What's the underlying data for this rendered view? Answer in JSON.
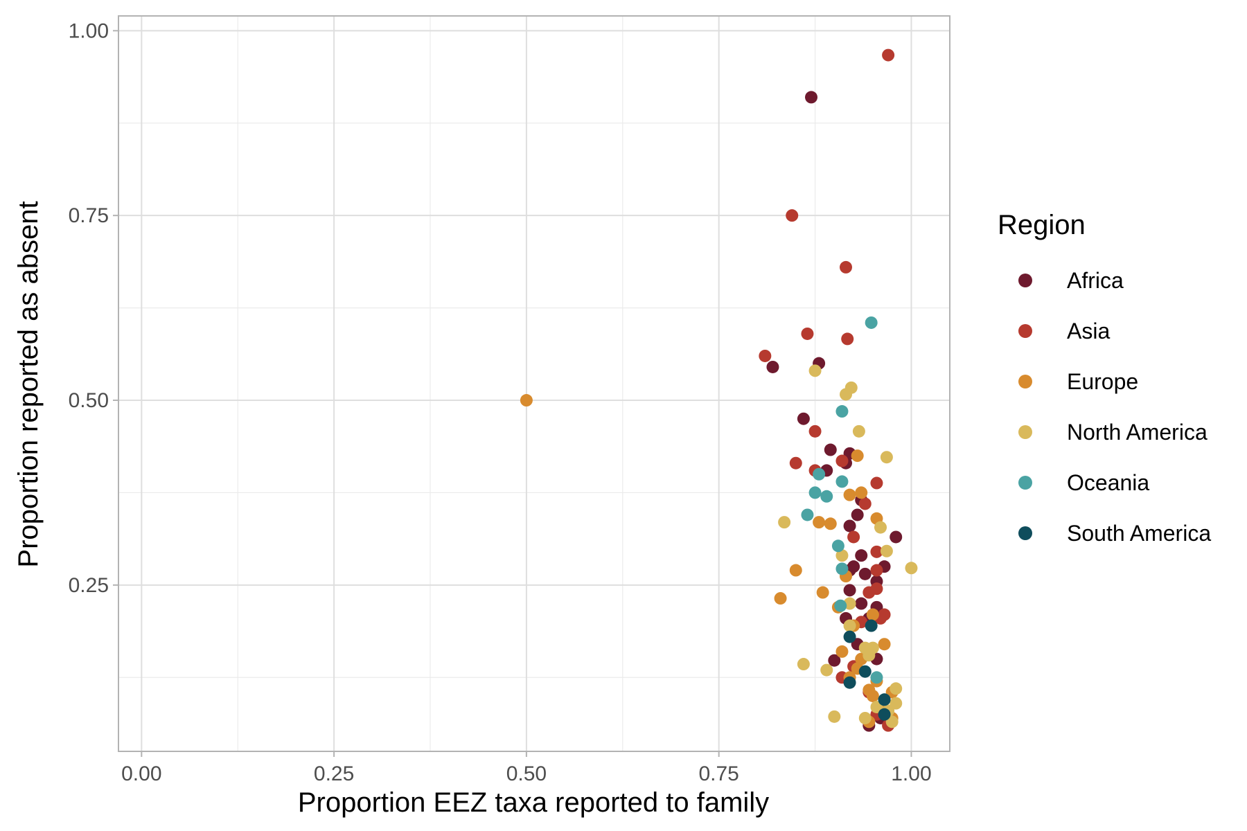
{
  "chart_data": {
    "type": "scatter",
    "title": "",
    "xlabel": "Proportion EEZ taxa reported to family",
    "ylabel": "Proportion reported as absent",
    "xlim": [
      -0.03,
      1.05
    ],
    "ylim": [
      0.025,
      1.02
    ],
    "x_ticks": [
      0,
      0.25,
      0.5,
      0.75,
      1.0
    ],
    "x_tick_labels": [
      "0.00",
      "0.25",
      "0.50",
      "0.75",
      "1.00"
    ],
    "y_ticks": [
      0.25,
      0.5,
      0.75,
      1.0
    ],
    "y_tick_labels": [
      "0.25",
      "0.50",
      "0.75",
      "1.00"
    ],
    "grid": true,
    "legend": {
      "title": "Region",
      "position": "right"
    },
    "series": [
      {
        "name": "Africa",
        "color": "#6e1a2e",
        "points": [
          [
            0.87,
            0.91
          ],
          [
            0.82,
            0.545
          ],
          [
            0.88,
            0.55
          ],
          [
            0.86,
            0.475
          ],
          [
            0.895,
            0.433
          ],
          [
            0.89,
            0.405
          ],
          [
            0.915,
            0.415
          ],
          [
            0.92,
            0.428
          ],
          [
            0.935,
            0.365
          ],
          [
            0.93,
            0.345
          ],
          [
            0.92,
            0.33
          ],
          [
            0.935,
            0.29
          ],
          [
            0.925,
            0.275
          ],
          [
            0.92,
            0.27
          ],
          [
            0.94,
            0.265
          ],
          [
            0.955,
            0.255
          ],
          [
            0.965,
            0.275
          ],
          [
            0.98,
            0.315
          ],
          [
            0.92,
            0.243
          ],
          [
            0.935,
            0.225
          ],
          [
            0.915,
            0.205
          ],
          [
            0.945,
            0.205
          ],
          [
            0.955,
            0.22
          ],
          [
            0.93,
            0.17
          ],
          [
            0.9,
            0.148
          ],
          [
            0.955,
            0.15
          ],
          [
            0.945,
            0.06
          ],
          [
            0.96,
            0.07
          ]
        ]
      },
      {
        "name": "Asia",
        "color": "#b63a2f",
        "points": [
          [
            0.97,
            0.967
          ],
          [
            0.845,
            0.75
          ],
          [
            0.915,
            0.68
          ],
          [
            0.865,
            0.59
          ],
          [
            0.917,
            0.583
          ],
          [
            0.81,
            0.56
          ],
          [
            0.875,
            0.458
          ],
          [
            0.85,
            0.415
          ],
          [
            0.875,
            0.405
          ],
          [
            0.91,
            0.418
          ],
          [
            0.955,
            0.388
          ],
          [
            0.94,
            0.36
          ],
          [
            0.925,
            0.315
          ],
          [
            0.955,
            0.295
          ],
          [
            0.955,
            0.27
          ],
          [
            0.945,
            0.24
          ],
          [
            0.955,
            0.245
          ],
          [
            0.965,
            0.21
          ],
          [
            0.96,
            0.205
          ],
          [
            0.935,
            0.2
          ],
          [
            0.91,
            0.125
          ],
          [
            0.925,
            0.14
          ],
          [
            0.945,
            0.105
          ],
          [
            0.955,
            0.075
          ],
          [
            0.97,
            0.06
          ]
        ]
      },
      {
        "name": "Europe",
        "color": "#d88b2e",
        "points": [
          [
            0.5,
            0.5
          ],
          [
            0.93,
            0.425
          ],
          [
            0.935,
            0.375
          ],
          [
            0.92,
            0.372
          ],
          [
            0.88,
            0.335
          ],
          [
            0.895,
            0.333
          ],
          [
            0.955,
            0.34
          ],
          [
            0.85,
            0.27
          ],
          [
            0.83,
            0.232
          ],
          [
            0.885,
            0.24
          ],
          [
            0.915,
            0.262
          ],
          [
            0.905,
            0.22
          ],
          [
            0.925,
            0.195
          ],
          [
            0.95,
            0.21
          ],
          [
            0.965,
            0.17
          ],
          [
            0.91,
            0.16
          ],
          [
            0.935,
            0.15
          ],
          [
            0.93,
            0.137
          ],
          [
            0.955,
            0.12
          ],
          [
            0.945,
            0.108
          ],
          [
            0.975,
            0.105
          ],
          [
            0.95,
            0.1
          ],
          [
            0.96,
            0.085
          ],
          [
            0.945,
            0.065
          ],
          [
            0.975,
            0.07
          ],
          [
            0.92,
            0.125
          ]
        ]
      },
      {
        "name": "North America",
        "color": "#d9b95b",
        "points": [
          [
            0.875,
            0.54
          ],
          [
            0.915,
            0.508
          ],
          [
            0.922,
            0.517
          ],
          [
            0.932,
            0.458
          ],
          [
            0.968,
            0.423
          ],
          [
            0.835,
            0.335
          ],
          [
            0.96,
            0.328
          ],
          [
            0.968,
            0.296
          ],
          [
            0.91,
            0.29
          ],
          [
            1.0,
            0.273
          ],
          [
            0.92,
            0.225
          ],
          [
            0.92,
            0.195
          ],
          [
            0.86,
            0.143
          ],
          [
            0.89,
            0.135
          ],
          [
            0.94,
            0.165
          ],
          [
            0.95,
            0.165
          ],
          [
            0.945,
            0.155
          ],
          [
            0.98,
            0.11
          ],
          [
            0.98,
            0.09
          ],
          [
            0.97,
            0.08
          ],
          [
            0.9,
            0.072
          ],
          [
            0.955,
            0.085
          ],
          [
            0.975,
            0.065
          ],
          [
            0.94,
            0.07
          ]
        ]
      },
      {
        "name": "Oceania",
        "color": "#4aa3a3",
        "points": [
          [
            0.948,
            0.605
          ],
          [
            0.91,
            0.485
          ],
          [
            0.88,
            0.4
          ],
          [
            0.91,
            0.39
          ],
          [
            0.875,
            0.375
          ],
          [
            0.89,
            0.37
          ],
          [
            0.865,
            0.345
          ],
          [
            0.905,
            0.303
          ],
          [
            0.91,
            0.272
          ],
          [
            0.908,
            0.222
          ],
          [
            0.955,
            0.125
          ],
          [
            0.965,
            0.095
          ]
        ]
      },
      {
        "name": "South America",
        "color": "#0f4d5c",
        "points": [
          [
            0.948,
            0.195
          ],
          [
            0.92,
            0.18
          ],
          [
            0.94,
            0.133
          ],
          [
            0.92,
            0.118
          ],
          [
            0.965,
            0.095
          ],
          [
            0.965,
            0.075
          ]
        ]
      }
    ]
  }
}
